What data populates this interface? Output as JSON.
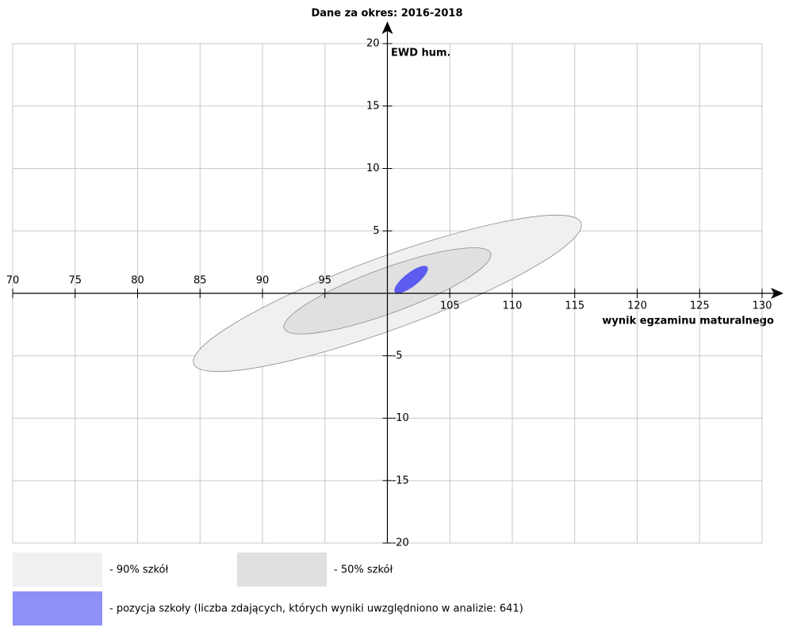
{
  "chart_data": {
    "type": "ellipse",
    "title": "Dane za okres: 2016-2018",
    "x_label": "wynik egzaminu maturalnego",
    "y_label": "EWD hum.",
    "xlim": [
      70,
      130
    ],
    "ylim": [
      -20,
      20
    ],
    "xticks": [
      70,
      75,
      80,
      85,
      90,
      95,
      105,
      110,
      115,
      120,
      125,
      130
    ],
    "yticks": [
      -20,
      -15,
      -10,
      -5,
      5,
      10,
      15,
      20
    ],
    "grid": true,
    "series": [
      {
        "name": "- 90% szkół",
        "color": "#f0f0f0",
        "legend_color": "#f0f0f0",
        "cx": 100,
        "cy": 0,
        "rx": 16.5,
        "ry": 2.9,
        "angle": 20
      },
      {
        "name": "- 50% szkół",
        "color": "#e0e0e0",
        "legend_color": "#e0e0e0",
        "cx": 100,
        "cy": 0.2,
        "rx": 8.8,
        "ry": 1.8,
        "angle": 20
      },
      {
        "name": "- pozycja szkoły (liczba zdających, których wyniki uwzględniono w analizie: 641)",
        "color": "#5c5cf0",
        "legend_color": "#8f8ff8",
        "cx": 101.9,
        "cy": 1.1,
        "rx": 1.65,
        "ry": 0.55,
        "angle": 38
      }
    ]
  }
}
